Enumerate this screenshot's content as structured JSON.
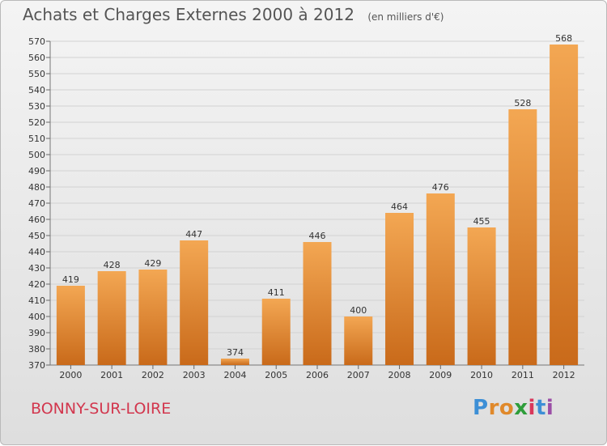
{
  "title": "Achats et Charges Externes 2000 à 2012",
  "subtitle": "(en milliers d'€)",
  "commune": "BONNY-SUR-LOIRE",
  "brand": {
    "text": "Proxiti",
    "letters": [
      "P",
      "r",
      "o",
      "x",
      "i",
      "t",
      "i"
    ],
    "colors": [
      "#3d8fd6",
      "#e0892b",
      "#e0892b",
      "#2e9d3a",
      "#d9385b",
      "#3d8fd6",
      "#9b4ea6"
    ]
  },
  "colors": {
    "bar_top": "#f3a753",
    "bar_bottom": "#c96a1a",
    "grid": "#d2d2d2",
    "axis_text": "#333333",
    "title": "#555555",
    "commune": "#d2374e"
  },
  "chart_data": {
    "type": "bar",
    "categories": [
      "2000",
      "2001",
      "2002",
      "2003",
      "2004",
      "2005",
      "2006",
      "2007",
      "2008",
      "2009",
      "2010",
      "2011",
      "2012"
    ],
    "values": [
      419,
      428,
      429,
      447,
      374,
      411,
      446,
      400,
      464,
      476,
      455,
      528,
      568
    ],
    "ylim": [
      370,
      570
    ],
    "yticks": [
      370,
      380,
      390,
      400,
      410,
      420,
      430,
      440,
      450,
      460,
      470,
      480,
      490,
      500,
      510,
      520,
      530,
      540,
      550,
      560,
      570
    ],
    "grid": true,
    "data_labels": true
  }
}
